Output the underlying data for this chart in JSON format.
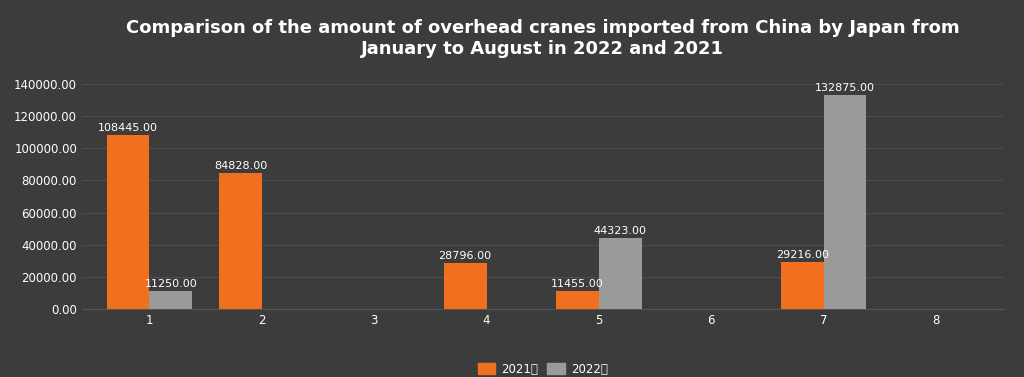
{
  "title": "Comparison of the amount of overhead cranes imported from China by Japan from\nJanuary to August in 2022 and 2021",
  "categories": [
    1,
    2,
    3,
    4,
    5,
    6,
    7,
    8
  ],
  "values_2021": [
    108445.0,
    84828.0,
    0,
    28796.0,
    11455.0,
    0,
    29216.0,
    0
  ],
  "values_2022": [
    11250.0,
    0,
    0,
    0,
    44323.0,
    0,
    132875.0,
    0
  ],
  "color_2021": "#F07020",
  "color_2022": "#9A9A9A",
  "background_color": "#3C3C3C",
  "text_color": "#FFFFFF",
  "grid_color": "#555555",
  "ylim": [
    0,
    150000
  ],
  "yticks": [
    0,
    20000,
    40000,
    60000,
    80000,
    100000,
    120000,
    140000
  ],
  "legend_2021": "2021年",
  "legend_2022": "2022年",
  "title_fontsize": 13,
  "label_fontsize": 8,
  "tick_fontsize": 8.5,
  "bar_width": 0.38
}
